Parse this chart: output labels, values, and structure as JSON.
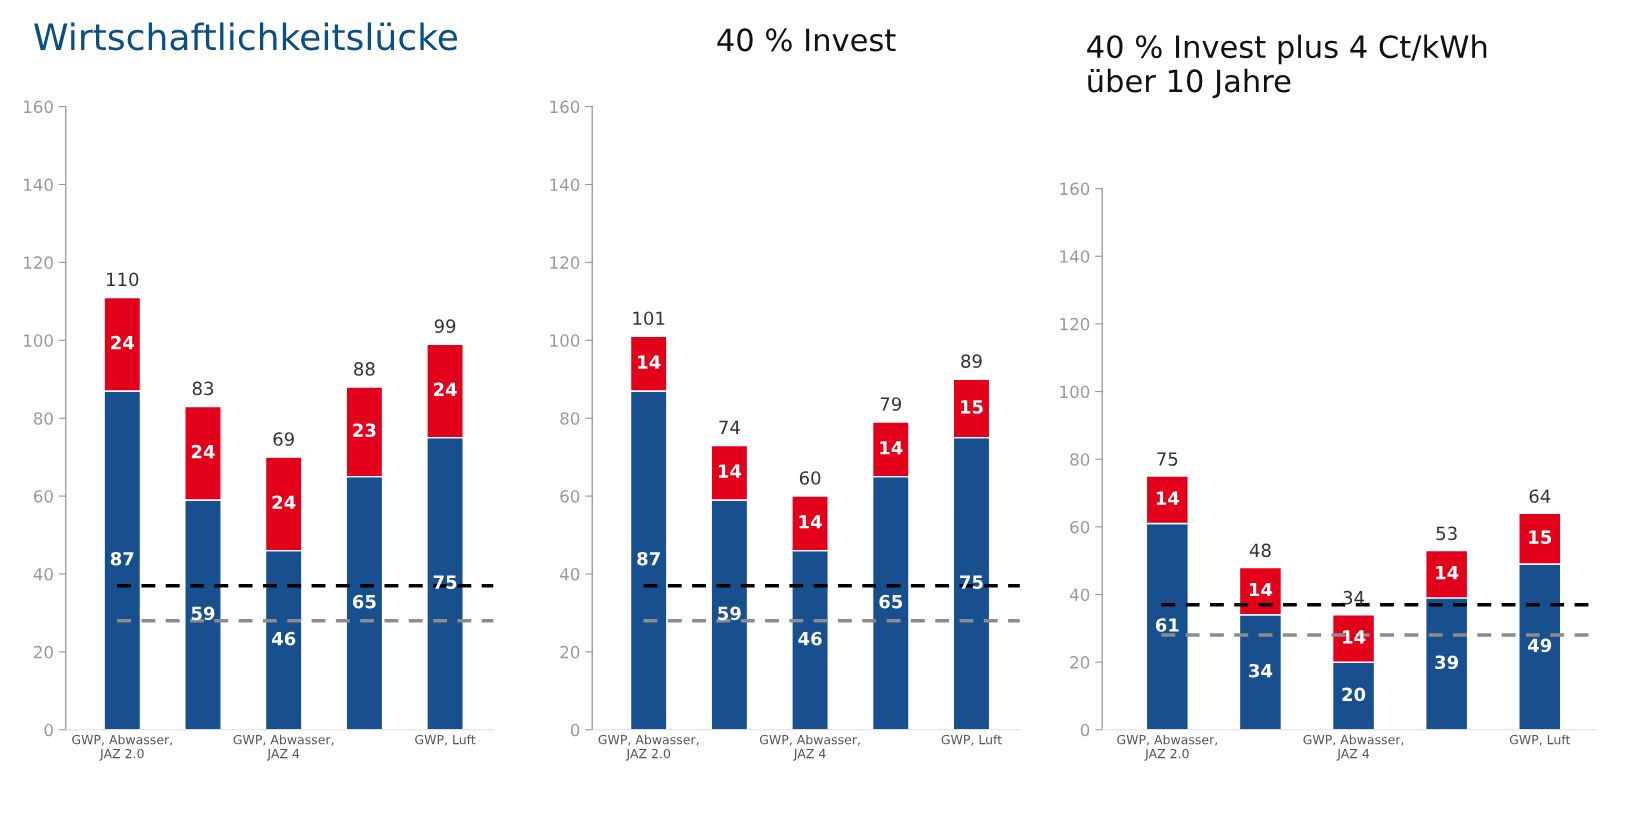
{
  "chart_data": [
    {
      "type": "bar",
      "title": "Wirtschaftlichkeitslücke",
      "stacked": true,
      "categories": [
        "GWP, Abwasser,\nJAZ 2.0",
        null,
        "GWP, Abwasser,\nJAZ 4",
        null,
        "GWP, Luft"
      ],
      "series": [
        {
          "color": "#174f8f",
          "values": [
            87,
            59,
            46,
            65,
            75
          ]
        },
        {
          "color": "#e2001a",
          "values": [
            24,
            24,
            24,
            23,
            24
          ]
        }
      ],
      "totals": [
        "110",
        "83",
        "69",
        "88",
        "99"
      ],
      "data_labels": true,
      "ylim": [
        0,
        160
      ],
      "yticks": [
        0,
        20,
        40,
        60,
        80,
        100,
        120,
        140,
        160
      ],
      "grid": false,
      "legend": false,
      "ref_lines": [
        {
          "axis": "y",
          "value": 37,
          "color": "#000000",
          "line_style": "dashed"
        },
        {
          "axis": "y",
          "value": 28,
          "color": "#8c8c8c",
          "line_style": "dashed"
        }
      ]
    },
    {
      "type": "bar",
      "title": "40 % Invest",
      "stacked": true,
      "categories": [
        "GWP, Abwasser,\nJAZ 2.0",
        null,
        "GWP, Abwasser,\nJAZ 4",
        null,
        "GWP, Luft"
      ],
      "series": [
        {
          "color": "#174f8f",
          "values": [
            87,
            59,
            46,
            65,
            75
          ]
        },
        {
          "color": "#e2001a",
          "values": [
            14,
            14,
            14,
            14,
            15
          ]
        }
      ],
      "totals": [
        "101",
        "74",
        "60",
        "79",
        "89"
      ],
      "data_labels": true,
      "ylim": [
        0,
        160
      ],
      "yticks": [
        0,
        20,
        40,
        60,
        80,
        100,
        120,
        140,
        160
      ],
      "grid": false,
      "legend": false,
      "ref_lines": [
        {
          "axis": "y",
          "value": 37,
          "color": "#000000",
          "line_style": "dashed"
        },
        {
          "axis": "y",
          "value": 28,
          "color": "#8c8c8c",
          "line_style": "dashed"
        }
      ]
    },
    {
      "type": "bar",
      "title": "40 % Invest plus 4 Ct/kWh\nüber 10 Jahre",
      "stacked": true,
      "categories": [
        "GWP, Abwasser,\nJAZ 2.0",
        null,
        "GWP, Abwasser,\nJAZ 4",
        null,
        "GWP, Luft"
      ],
      "series": [
        {
          "color": "#174f8f",
          "values": [
            61,
            34,
            20,
            39,
            49
          ]
        },
        {
          "color": "#e2001a",
          "values": [
            14,
            14,
            14,
            14,
            15
          ]
        }
      ],
      "totals": [
        "75",
        "48",
        "34",
        "53",
        "64"
      ],
      "data_labels": true,
      "ylim": [
        0,
        160
      ],
      "yticks": [
        0,
        20,
        40,
        60,
        80,
        100,
        120,
        140,
        160
      ],
      "grid": false,
      "legend": false,
      "ref_lines": [
        {
          "axis": "y",
          "value": 37,
          "color": "#000000",
          "line_style": "dashed"
        },
        {
          "axis": "y",
          "value": 28,
          "color": "#8c8c8c",
          "line_style": "dashed"
        }
      ]
    }
  ]
}
